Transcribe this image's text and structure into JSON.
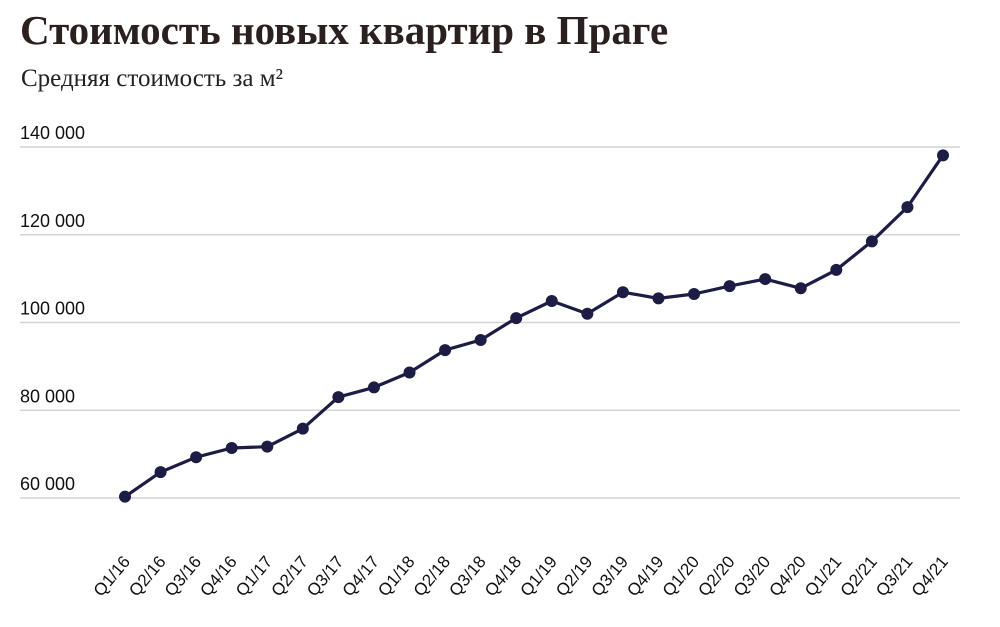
{
  "chart_data": {
    "type": "line",
    "title": "Стоимость новых квартир в Праге",
    "subtitle": "Средняя стоимость за м²",
    "xlabel": "",
    "ylabel": "",
    "categories": [
      "Q1/16",
      "Q2/16",
      "Q3/16",
      "Q4/16",
      "Q1/17",
      "Q2/17",
      "Q3/17",
      "Q4/17",
      "Q1/18",
      "Q2/18",
      "Q3/18",
      "Q4/18",
      "Q1/19",
      "Q2/19",
      "Q3/19",
      "Q4/19",
      "Q1/20",
      "Q2/20",
      "Q3/20",
      "Q4/20",
      "Q1/21",
      "Q2/21",
      "Q3/21",
      "Q4/21"
    ],
    "series": [
      {
        "values": [
          60300,
          65900,
          69300,
          71400,
          71700,
          75800,
          83000,
          85200,
          88600,
          93700,
          96000,
          101000,
          104900,
          102000,
          106900,
          105500,
          106500,
          108300,
          109900,
          107800,
          112000,
          118500,
          126300,
          138100
        ],
        "color": "#1c1c44"
      }
    ],
    "y_ticks": [
      "60 000",
      "80 000",
      "100 000",
      "120 000",
      "140 000"
    ],
    "y_tick_values": [
      60000,
      80000,
      100000,
      120000,
      140000
    ],
    "ylim": [
      60000,
      140000
    ],
    "grid": "horizontal",
    "legend": "none"
  }
}
